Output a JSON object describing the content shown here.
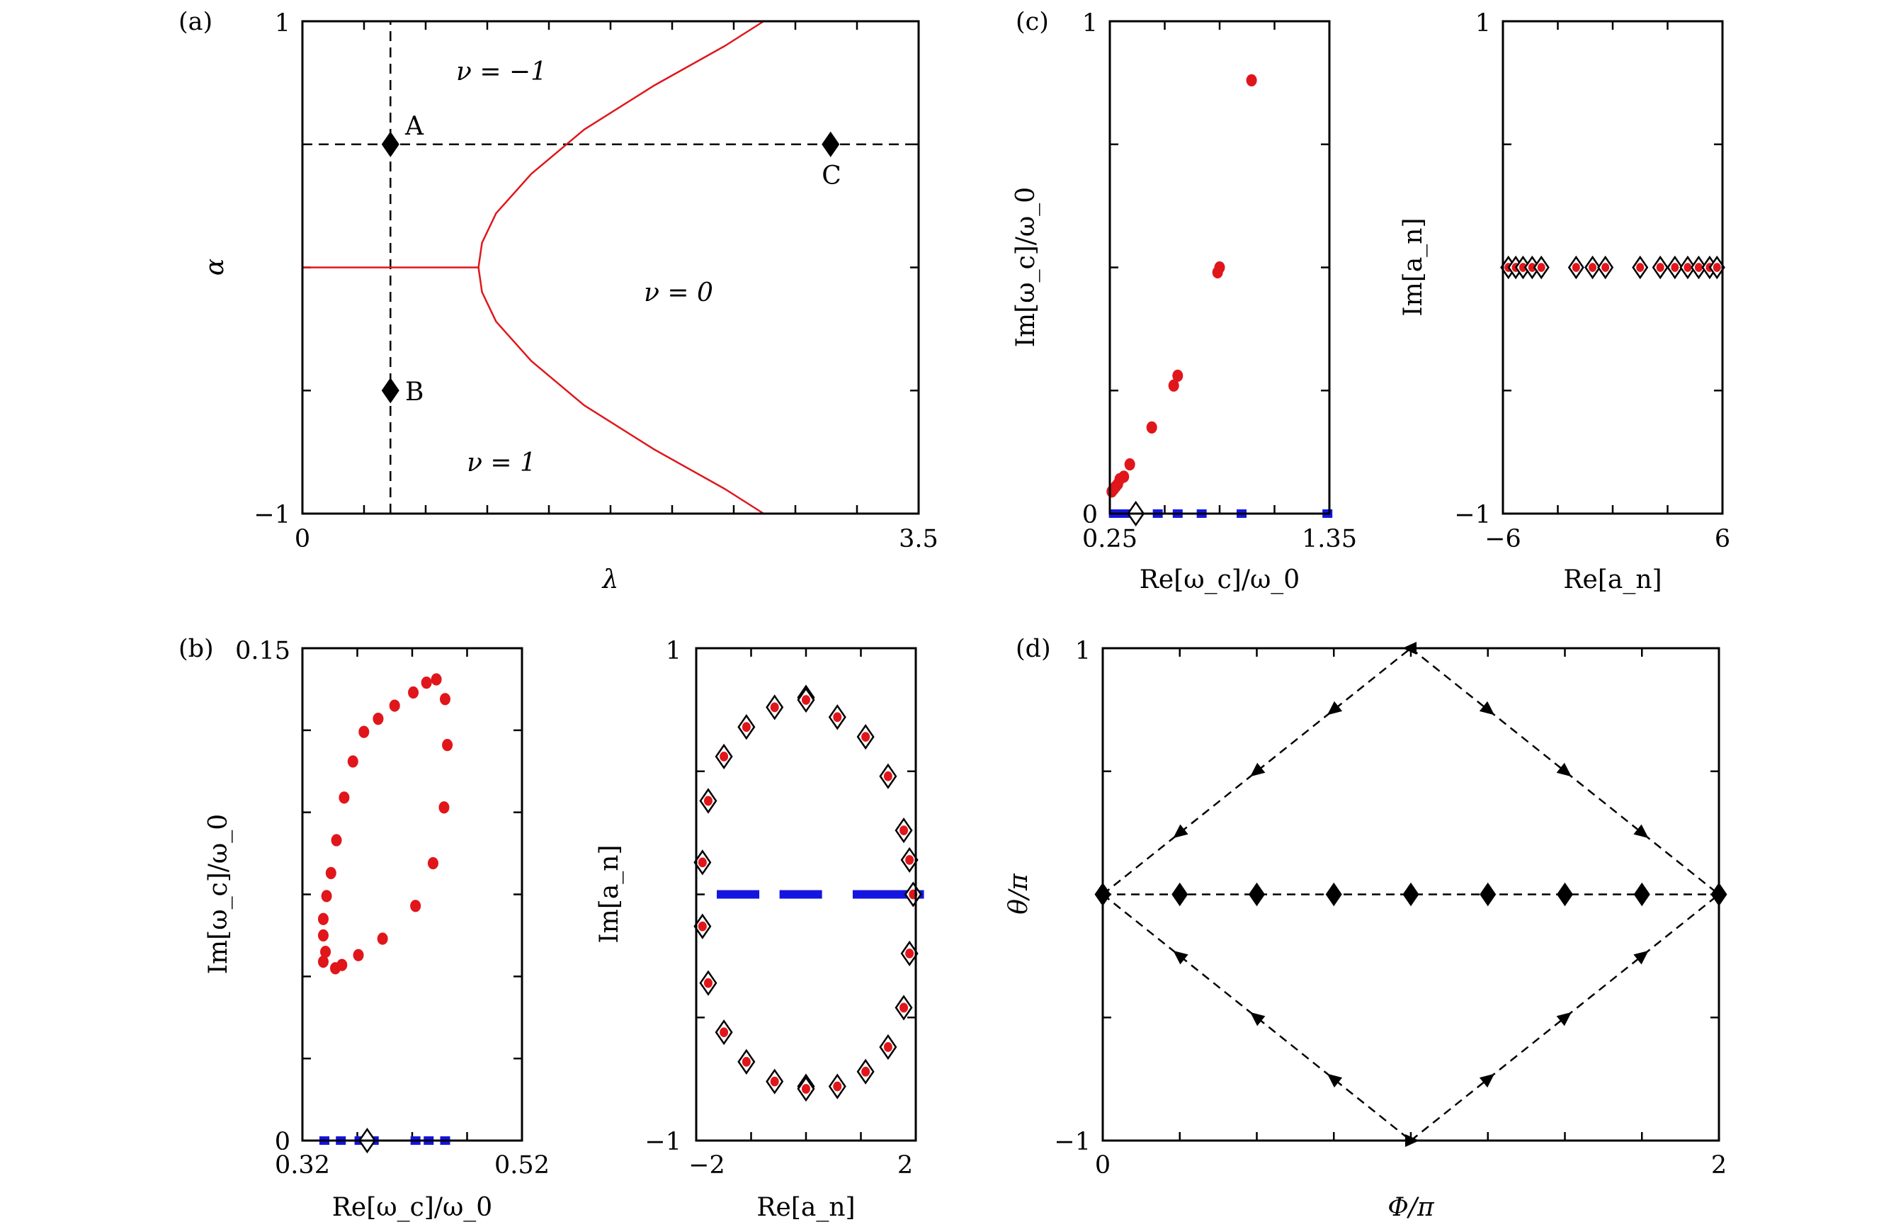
{
  "colors": {
    "red": "#e0161b",
    "blue": "#1515e0",
    "black": "#000000"
  },
  "panel_labels": {
    "a": "(a)",
    "b": "(b)",
    "c": "(c)",
    "d": "(d)"
  },
  "chart_data": [
    {
      "id": "a",
      "type": "line",
      "title": "(a)",
      "xlabel": "λ",
      "ylabel": "α",
      "xlim": [
        0,
        3.5
      ],
      "ylim": [
        -1,
        1
      ],
      "xtick_labels": [
        "0",
        "3.5"
      ],
      "ytick_labels": [
        "−1",
        "1"
      ],
      "phase_labels": [
        {
          "text": "ν = −1",
          "x": 1.1,
          "y": 0.78
        },
        {
          "text": "ν = 0",
          "x": 2.15,
          "y": -0.1
        },
        {
          "text": "ν = 1",
          "x": 1.15,
          "y": -0.8
        }
      ],
      "points": [
        {
          "name": "A",
          "x": 0.5,
          "y": 0.5
        },
        {
          "name": "B",
          "x": 0.5,
          "y": -0.5
        },
        {
          "name": "C",
          "x": 3.0,
          "y": 0.5
        }
      ],
      "dashed_lines": [
        {
          "x": [
            0.5,
            0.5
          ],
          "y": [
            -1,
            1
          ]
        },
        {
          "x": [
            0,
            3.5
          ],
          "y": [
            0.5,
            0.5
          ]
        }
      ],
      "series": [
        {
          "name": "boundary-flat",
          "color": "red",
          "x": [
            0,
            1.0
          ],
          "y": [
            0,
            0
          ]
        },
        {
          "name": "boundary-upper",
          "color": "red",
          "x": [
            1.0,
            1.02,
            1.1,
            1.3,
            1.6,
            2.0,
            2.4,
            2.62
          ],
          "y": [
            0,
            0.1,
            0.22,
            0.38,
            0.56,
            0.74,
            0.9,
            1.0
          ]
        },
        {
          "name": "boundary-lower",
          "color": "red",
          "x": [
            1.0,
            1.02,
            1.1,
            1.3,
            1.6,
            2.0,
            2.4,
            2.62
          ],
          "y": [
            0,
            -0.1,
            -0.22,
            -0.38,
            -0.56,
            -0.74,
            -0.9,
            -1.0
          ]
        }
      ]
    },
    {
      "id": "b-left",
      "type": "scatter",
      "title": "(b)",
      "xlabel": "Re[ω_c]/ω_0",
      "ylabel": "Im[ω_c]/ω_0",
      "xlim": [
        0.32,
        0.52
      ],
      "ylim": [
        0,
        0.15
      ],
      "xtick_labels": [
        "0.32",
        "0.52"
      ],
      "ytick_labels": [
        "0",
        "0.15"
      ],
      "series": [
        {
          "name": "red-dots",
          "marker": "dot",
          "color": "red",
          "x": [
            0.339,
            0.341,
            0.339,
            0.339,
            0.342,
            0.346,
            0.351,
            0.358,
            0.366,
            0.376,
            0.389,
            0.404,
            0.421,
            0.433,
            0.442,
            0.45,
            0.452,
            0.449,
            0.439,
            0.423,
            0.393,
            0.371,
            0.356,
            0.35
          ],
          "y": [
            0.0545,
            0.0575,
            0.0625,
            0.0675,
            0.0745,
            0.0815,
            0.0915,
            0.1045,
            0.1155,
            0.1245,
            0.1285,
            0.1325,
            0.1365,
            0.1395,
            0.1405,
            0.1345,
            0.1205,
            0.1015,
            0.0845,
            0.0715,
            0.0615,
            0.0565,
            0.0535,
            0.0525
          ]
        },
        {
          "name": "blue-bars",
          "marker": "square",
          "color": "blue",
          "x": [
            0.34,
            0.355,
            0.372,
            0.385,
            0.423,
            0.435,
            0.45
          ],
          "y": [
            0,
            0,
            0,
            0,
            0,
            0,
            0
          ]
        },
        {
          "name": "diamond",
          "marker": "open-diamond",
          "color": "black",
          "x": [
            0.379
          ],
          "y": [
            0
          ]
        }
      ]
    },
    {
      "id": "b-right",
      "type": "scatter",
      "xlabel": "Re[a_n]",
      "ylabel": "Im[a_n]",
      "xlim": [
        -2.1,
        2.1
      ],
      "ylim": [
        -1,
        1
      ],
      "xtick_labels": [
        "−2",
        "2"
      ],
      "ytick_labels": [
        "−1",
        "1"
      ],
      "series": [
        {
          "name": "red-dots",
          "marker": "dot-in-diamond",
          "color": "red",
          "x": [
            0,
            0.6,
            1.14,
            1.57,
            1.87,
            1.98,
            1.98,
            1.87,
            1.57,
            1.14,
            0.6,
            0,
            -0.6,
            -1.14,
            -1.57,
            -1.87,
            -1.98,
            -1.98,
            -1.87,
            -1.57,
            -1.14,
            -0.6,
            0,
            0
          ],
          "y": [
            0.8,
            0.72,
            0.64,
            0.48,
            0.26,
            0.14,
            -0.24,
            -0.46,
            -0.62,
            -0.72,
            -0.78,
            -0.78,
            -0.76,
            -0.68,
            -0.56,
            -0.36,
            -0.13,
            0.13,
            0.38,
            0.56,
            0.68,
            0.76,
            0.79,
            -0.79
          ]
        },
        {
          "name": "blue-bars",
          "marker": "square",
          "color": "blue",
          "x": [
            -1.3,
            -0.1,
            1.3,
            1.85
          ],
          "y": [
            0,
            0,
            0,
            0
          ]
        },
        {
          "name": "diamond-center",
          "marker": "open-diamond",
          "color": "black",
          "x": [
            2.05
          ],
          "y": [
            0
          ]
        }
      ]
    },
    {
      "id": "c-left",
      "type": "scatter",
      "title": "(c)",
      "xlabel": "Re[ω_c]/ω_0",
      "ylabel": "Im[ω_c]/ω_0",
      "xlim": [
        0.25,
        1.35
      ],
      "ylim": [
        0,
        1
      ],
      "xtick_labels": [
        "0.25",
        "1.35"
      ],
      "ytick_labels": [
        "0",
        "1"
      ],
      "series": [
        {
          "name": "red-dots",
          "marker": "dot",
          "color": "red",
          "x": [
            0.26,
            0.27,
            0.28,
            0.29,
            0.3,
            0.32,
            0.35,
            0.46,
            0.57,
            0.59,
            0.79,
            0.8,
            0.96
          ],
          "y": [
            0.045,
            0.05,
            0.055,
            0.06,
            0.07,
            0.075,
            0.1,
            0.175,
            0.26,
            0.28,
            0.49,
            0.5,
            0.88
          ]
        },
        {
          "name": "blue-bars",
          "marker": "square",
          "color": "blue",
          "x": [
            0.27,
            0.31,
            0.35,
            0.49,
            0.59,
            0.71,
            0.91,
            1.34
          ],
          "y": [
            0,
            0,
            0,
            0,
            0,
            0,
            0,
            0
          ]
        },
        {
          "name": "diamond",
          "marker": "open-diamond",
          "color": "black",
          "x": [
            0.38
          ],
          "y": [
            0
          ]
        }
      ]
    },
    {
      "id": "c-right",
      "type": "scatter",
      "xlabel": "Re[a_n]",
      "ylabel": "Im[a_n]",
      "xlim": [
        -6,
        6
      ],
      "ylim": [
        -1,
        1
      ],
      "xtick_labels": [
        "−6",
        "6"
      ],
      "ytick_labels": [
        "−1",
        "1"
      ],
      "series": [
        {
          "name": "diamonds",
          "marker": "dot-in-diamond",
          "color": "red",
          "x": [
            -5.7,
            -5.3,
            -4.9,
            -4.4,
            -3.9,
            -2.0,
            -1.1,
            -0.4,
            1.5,
            2.6,
            3.4,
            4.1,
            4.7,
            5.3,
            5.7
          ],
          "y": [
            0,
            0,
            0,
            0,
            0,
            0,
            0,
            0,
            0,
            0,
            0,
            0,
            0,
            0,
            0
          ]
        }
      ]
    },
    {
      "id": "d",
      "type": "line",
      "title": "(d)",
      "xlabel": "Φ/π",
      "ylabel": "θ/π",
      "xlim": [
        0,
        2
      ],
      "ylim": [
        -1,
        1
      ],
      "xtick_labels": [
        "0",
        "2"
      ],
      "ytick_labels": [
        "−1",
        "1"
      ],
      "series": [
        {
          "name": "center-line",
          "marker": "diamond",
          "color": "black",
          "x": [
            0,
            0.25,
            0.5,
            0.75,
            1.0,
            1.25,
            1.5,
            1.75,
            2.0
          ],
          "y": [
            0,
            0,
            0,
            0,
            0,
            0,
            0,
            0,
            0
          ]
        },
        {
          "name": "upper-left",
          "marker": "arrow",
          "color": "black",
          "x": [
            0,
            0.25,
            0.5,
            0.75,
            1.0
          ],
          "y": [
            0,
            0.25,
            0.5,
            0.75,
            1.0
          ]
        },
        {
          "name": "upper-right",
          "marker": "arrow",
          "color": "black",
          "x": [
            1.0,
            1.25,
            1.5,
            1.75,
            2.0
          ],
          "y": [
            1.0,
            0.75,
            0.5,
            0.25,
            0
          ]
        },
        {
          "name": "lower-left",
          "marker": "arrow",
          "color": "black",
          "x": [
            0,
            0.25,
            0.5,
            0.75,
            1.0
          ],
          "y": [
            0,
            -0.25,
            -0.5,
            -0.75,
            -1.0
          ]
        },
        {
          "name": "lower-right",
          "marker": "arrow",
          "color": "black",
          "x": [
            1.0,
            1.25,
            1.5,
            1.75,
            2.0
          ],
          "y": [
            -1.0,
            -0.75,
            -0.5,
            -0.25,
            0
          ]
        }
      ]
    }
  ]
}
